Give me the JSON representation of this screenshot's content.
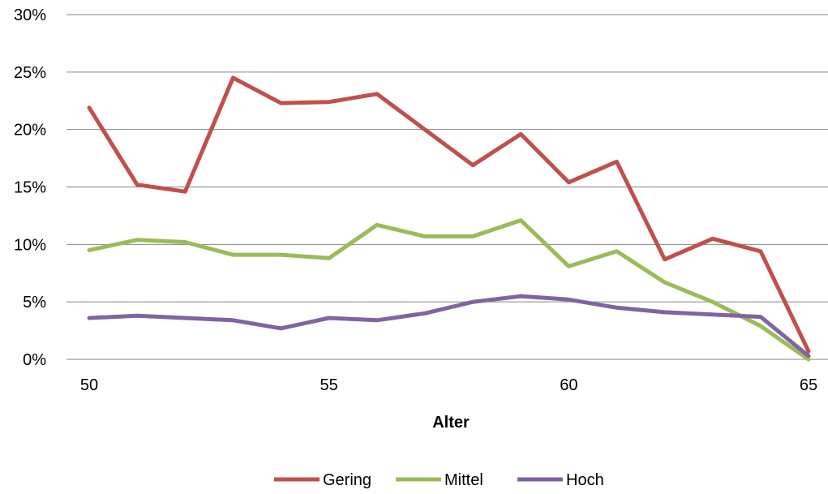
{
  "chart_data": {
    "type": "line",
    "title": "",
    "xlabel": "Alter",
    "ylabel": "",
    "x": [
      50,
      51,
      52,
      53,
      54,
      55,
      56,
      57,
      58,
      59,
      60,
      61,
      62,
      63,
      64,
      65
    ],
    "xlim": [
      50,
      65
    ],
    "ylim": [
      0,
      0.3
    ],
    "x_ticks": [
      "50",
      "55",
      "60",
      "65"
    ],
    "x_tick_values": [
      50,
      55,
      60,
      65
    ],
    "y_ticks": [
      "0%",
      "5%",
      "10%",
      "15%",
      "20%",
      "25%",
      "30%"
    ],
    "y_tick_values": [
      0,
      0.05,
      0.1,
      0.15,
      0.2,
      0.25,
      0.3
    ],
    "grid": true,
    "legend_position": "bottom",
    "series": [
      {
        "name": "Gering",
        "color": "#C0504D",
        "values": [
          0.219,
          0.152,
          0.146,
          0.245,
          0.223,
          0.224,
          0.231,
          0.2,
          0.169,
          0.196,
          0.154,
          0.172,
          0.087,
          0.105,
          0.094,
          0.007
        ]
      },
      {
        "name": "Mittel",
        "color": "#9BBB59",
        "values": [
          0.095,
          0.104,
          0.102,
          0.091,
          0.091,
          0.088,
          0.117,
          0.107,
          0.107,
          0.121,
          0.081,
          0.094,
          0.067,
          0.05,
          0.029,
          0.0
        ]
      },
      {
        "name": "Hoch",
        "color": "#8064A2",
        "values": [
          0.036,
          0.038,
          0.036,
          0.034,
          0.027,
          0.036,
          0.034,
          0.04,
          0.05,
          0.055,
          0.052,
          0.045,
          0.041,
          0.039,
          0.037,
          0.003
        ]
      }
    ]
  }
}
